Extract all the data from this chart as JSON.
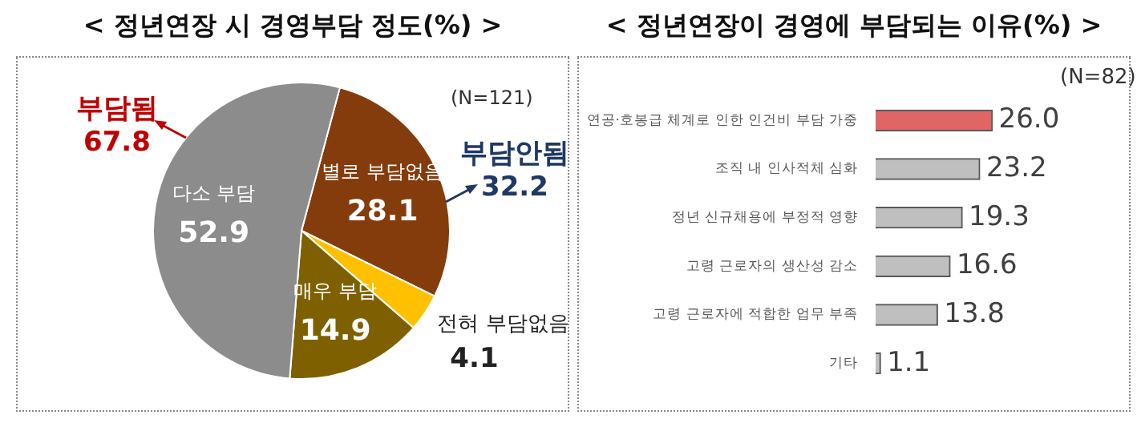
{
  "chart_data": [
    {
      "type": "pie",
      "title": "< 정년연장 시 경영부담 정도(%) >",
      "categories": [
        "별로 부담없음",
        "전혀 부담없음",
        "매우 부담",
        "다소 부담"
      ],
      "values": [
        28.1,
        4.1,
        14.9,
        52.9
      ],
      "colors": [
        "#843c0c",
        "#ffc000",
        "#7f6000",
        "#8c8c8c"
      ],
      "data_labels": true,
      "annotations": [
        "(N=121)",
        "부담됨\n67.8",
        "부담안됨\n32.2"
      ]
    },
    {
      "type": "bar",
      "orientation": "horizontal",
      "title": "< 정년연장이 경영에 부담되는 이유(%) >",
      "categories": [
        "연공·호봉급 체계로 인한 인건비 부담 가중",
        "조직 내 인사적체 심화",
        "정년 신규채용에 부정적 영향",
        "고령 근로자의 생산성 감소",
        "고령 근로자에 적합한 업무 부족",
        "기타"
      ],
      "values": [
        26.0,
        23.2,
        19.3,
        16.6,
        13.8,
        1.1
      ],
      "colors": [
        "#e06666",
        "#bfbfbf",
        "#bfbfbf",
        "#bfbfbf",
        "#bfbfbf",
        "#bfbfbf"
      ],
      "value_labels": [
        "26.0",
        "23.2",
        "19.3",
        "16.6",
        "13.8",
        "1.1"
      ],
      "annotations": [
        "(N=82)"
      ]
    }
  ]
}
